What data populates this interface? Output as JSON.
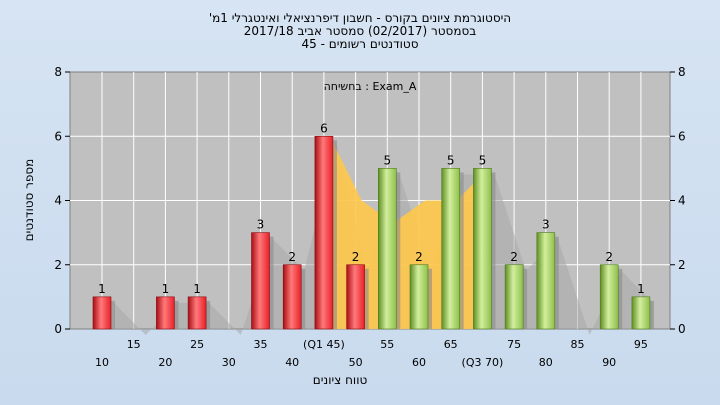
{
  "chart_data": {
    "type": "bar",
    "title_lines": [
      "היסטוגרמת ציונים בקורס - חשבון דיפרנציאלי ואינטגרלי 1מ'",
      "בסמסטר  (02/2017)  סמסטר אביב 2017/18",
      "סטודנטים רשומים - 45"
    ],
    "annotation": "Exam_A : בחשיחה",
    "xlabel": "טווח ציונים",
    "ylabel": "מספר סטודנטים",
    "ylim": [
      0,
      8
    ],
    "yticks": [
      0,
      2,
      4,
      6,
      8
    ],
    "grid": true,
    "categories": [
      "10",
      "15",
      "20",
      "25",
      "30",
      "35",
      "40",
      "(Q1 45)",
      "50",
      "55",
      "60",
      "65",
      "(Q3 70)",
      "75",
      "80",
      "85",
      "90",
      "95"
    ],
    "series": [
      {
        "values": [
          1,
          0,
          1,
          1,
          0,
          3,
          2,
          6,
          2,
          5,
          2,
          5,
          5,
          2,
          3,
          0,
          2,
          1
        ],
        "colors": [
          "red",
          "red",
          "red",
          "red",
          "red",
          "red",
          "red",
          "red",
          "red",
          "green",
          "green",
          "green",
          "green",
          "green",
          "green",
          "green",
          "green",
          "green"
        ]
      }
    ],
    "area_band": {
      "from_category": "(Q1 45)",
      "to_category": "(Q3 70)",
      "values": [
        6,
        4,
        3.3,
        4,
        4,
        5
      ]
    },
    "colors": {
      "red": "#e8202a",
      "green": "#8dc04a",
      "band": "#ffc84a",
      "plot_bg": "#c0c0c0",
      "shadow": "#a8a8a8",
      "grid": "#ffffff"
    }
  }
}
